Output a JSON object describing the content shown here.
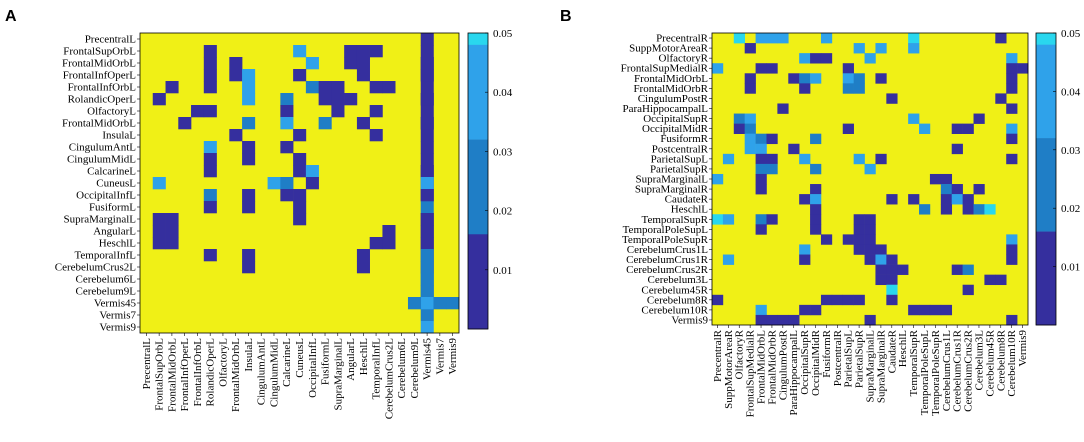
{
  "chart_data": [
    {
      "type": "heatmap",
      "panel_label": "A",
      "labels": [
        "PrecentralL",
        "FrontalSupOrbL",
        "FrontalMidOrbL",
        "FrontalInfOperL",
        "FrontalInfOrbL",
        "RolandicOperL",
        "OlfactoryL",
        "FrontalMidOrbL",
        "InsulaL",
        "CingulumAntL",
        "CingulumMidL",
        "CalcarineL",
        "CuneusL",
        "OccipitalInfL",
        "FusiformL",
        "SupraMarginalL",
        "AngularL",
        "HeschlL",
        "TemporalInfL",
        "CerebelumCrus2L",
        "Cerebelum6L",
        "Cerebelum9L",
        "Vermis45",
        "Vermis7",
        "Vermis9"
      ],
      "colorbar": {
        "ticks": [
          "0.01",
          "0.02",
          "0.03",
          "0.04",
          "0.05"
        ],
        "min": 0,
        "max": 0.05
      },
      "colors": {
        "background": "#f0f016",
        "dark": "#352f9e",
        "mid": "#1f7ec6",
        "light": "#2fa2ea",
        "cyan": "#29d7ee"
      },
      "cells": [
        [
          0,
          22,
          1
        ],
        [
          1,
          22,
          1
        ],
        [
          2,
          22,
          1
        ],
        [
          3,
          22,
          1
        ],
        [
          4,
          22,
          1
        ],
        [
          5,
          22,
          1
        ],
        [
          6,
          22,
          1
        ],
        [
          7,
          22,
          1
        ],
        [
          8,
          22,
          1
        ],
        [
          9,
          22,
          1
        ],
        [
          10,
          22,
          1
        ],
        [
          11,
          22,
          1
        ],
        [
          12,
          22,
          1
        ],
        [
          13,
          22,
          1
        ],
        [
          14,
          22,
          2
        ],
        [
          15,
          22,
          1
        ],
        [
          16,
          22,
          1
        ],
        [
          17,
          22,
          1
        ],
        [
          18,
          22,
          1
        ],
        [
          19,
          22,
          1
        ],
        [
          20,
          22,
          2
        ],
        [
          21,
          22,
          2
        ],
        [
          23,
          22,
          2
        ],
        [
          24,
          22,
          3
        ],
        [
          1,
          12,
          3
        ],
        [
          1,
          16,
          1
        ],
        [
          1,
          17,
          1
        ],
        [
          1,
          5,
          1
        ],
        [
          1,
          18,
          1
        ],
        [
          2,
          5,
          1
        ],
        [
          2,
          7,
          1
        ],
        [
          2,
          16,
          1
        ],
        [
          2,
          17,
          1
        ],
        [
          2,
          13,
          3
        ],
        [
          2,
          22,
          1
        ],
        [
          3,
          7,
          1
        ],
        [
          3,
          5,
          1
        ],
        [
          3,
          8,
          3
        ],
        [
          3,
          12,
          1
        ],
        [
          3,
          17,
          1
        ],
        [
          3,
          22,
          1
        ],
        [
          4,
          5,
          1
        ],
        [
          4,
          2,
          1
        ],
        [
          4,
          8,
          3
        ],
        [
          4,
          13,
          2
        ],
        [
          4,
          14,
          1
        ],
        [
          4,
          15,
          1
        ],
        [
          4,
          19,
          1
        ],
        [
          4,
          18,
          1
        ],
        [
          5,
          1,
          1
        ],
        [
          5,
          8,
          3
        ],
        [
          5,
          11,
          2
        ],
        [
          5,
          14,
          1
        ],
        [
          5,
          15,
          1
        ],
        [
          5,
          16,
          1
        ],
        [
          5,
          22,
          1
        ],
        [
          6,
          4,
          1
        ],
        [
          6,
          5,
          1
        ],
        [
          6,
          11,
          1
        ],
        [
          6,
          15,
          1
        ],
        [
          6,
          18,
          1
        ],
        [
          7,
          3,
          1
        ],
        [
          7,
          8,
          2
        ],
        [
          7,
          11,
          3
        ],
        [
          7,
          14,
          2
        ],
        [
          7,
          17,
          1
        ],
        [
          7,
          22,
          1
        ],
        [
          8,
          12,
          1
        ],
        [
          8,
          18,
          1
        ],
        [
          8,
          7,
          1
        ],
        [
          9,
          5,
          3
        ],
        [
          9,
          8,
          1
        ],
        [
          9,
          11,
          1
        ],
        [
          10,
          8,
          1
        ],
        [
          10,
          5,
          1
        ],
        [
          10,
          12,
          1
        ],
        [
          11,
          5,
          1
        ],
        [
          11,
          12,
          1
        ],
        [
          11,
          13,
          3
        ],
        [
          11,
          22,
          1
        ],
        [
          12,
          1,
          3
        ],
        [
          12,
          10,
          3
        ],
        [
          12,
          11,
          2
        ],
        [
          12,
          13,
          1
        ],
        [
          12,
          22,
          3
        ],
        [
          13,
          5,
          2
        ],
        [
          13,
          12,
          1
        ],
        [
          13,
          8,
          1
        ],
        [
          13,
          11,
          1
        ],
        [
          13,
          22,
          1
        ],
        [
          14,
          5,
          1
        ],
        [
          14,
          12,
          1
        ],
        [
          14,
          8,
          1
        ],
        [
          15,
          1,
          1
        ],
        [
          15,
          2,
          1
        ],
        [
          15,
          12,
          1
        ],
        [
          15,
          22,
          1
        ],
        [
          16,
          1,
          1
        ],
        [
          16,
          2,
          1
        ],
        [
          16,
          19,
          1
        ],
        [
          16,
          22,
          1
        ],
        [
          17,
          1,
          1
        ],
        [
          17,
          2,
          1
        ],
        [
          17,
          19,
          1
        ],
        [
          17,
          18,
          1
        ],
        [
          17,
          22,
          1
        ],
        [
          18,
          5,
          1
        ],
        [
          18,
          8,
          1
        ],
        [
          18,
          17,
          1
        ],
        [
          18,
          22,
          2
        ],
        [
          19,
          8,
          1
        ],
        [
          19,
          17,
          1
        ],
        [
          19,
          22,
          2
        ],
        [
          20,
          22,
          2
        ],
        [
          21,
          22,
          2
        ],
        [
          22,
          22,
          3
        ],
        [
          22,
          23,
          2
        ],
        [
          22,
          21,
          2
        ],
        [
          22,
          24,
          2
        ]
      ]
    },
    {
      "type": "heatmap",
      "panel_label": "B",
      "labels": [
        "PrecentralR",
        "SuppMotorAreaR",
        "OlfactoryR",
        "FrontalSupMedialR",
        "FrontalMidOrbL",
        "FrontalMidOrbR",
        "CingulumPostR",
        "ParaHippocampalL",
        "OccipitalSupR",
        "OccipitalMidR",
        "FusiformR",
        "PostcentralR",
        "ParietalSupL",
        "ParietalSupR",
        "SupraMarginalL",
        "SupraMarginalR",
        "CaudateR",
        "HeschlL",
        "TemporalSupR",
        "TemporalPoleSupL",
        "TemporalPoleSupR",
        "CerebelumCrus1L",
        "CerebelumCrus1R",
        "CerebelumCrus2R",
        "Cerebelum3L",
        "Cerebelum45R",
        "Cerebelum8R",
        "Cerebelum10R",
        "Vermis9"
      ],
      "colorbar": {
        "ticks": [
          "0.01",
          "0.02",
          "0.03",
          "0.04",
          "0.05"
        ],
        "min": 0,
        "max": 0.05
      },
      "colors": {
        "background": "#f0f016",
        "dark": "#352f9e",
        "mid": "#1f7ec6",
        "light": "#2fa2ea",
        "cyan": "#29d7ee"
      },
      "cells": [
        [
          0,
          2,
          4
        ],
        [
          0,
          4,
          3
        ],
        [
          0,
          5,
          3
        ],
        [
          0,
          6,
          3
        ],
        [
          0,
          10,
          3
        ],
        [
          0,
          18,
          4
        ],
        [
          0,
          26,
          1
        ],
        [
          1,
          3,
          1
        ],
        [
          1,
          13,
          3
        ],
        [
          1,
          15,
          3
        ],
        [
          1,
          18,
          3
        ],
        [
          2,
          8,
          3
        ],
        [
          2,
          9,
          1
        ],
        [
          2,
          10,
          1
        ],
        [
          2,
          14,
          3
        ],
        [
          2,
          27,
          3
        ],
        [
          3,
          0,
          3
        ],
        [
          3,
          4,
          1
        ],
        [
          3,
          5,
          1
        ],
        [
          3,
          12,
          1
        ],
        [
          3,
          27,
          1
        ],
        [
          3,
          28,
          1
        ],
        [
          4,
          3,
          1
        ],
        [
          4,
          7,
          1
        ],
        [
          4,
          8,
          2
        ],
        [
          4,
          9,
          3
        ],
        [
          4,
          12,
          3
        ],
        [
          4,
          13,
          2
        ],
        [
          4,
          15,
          1
        ],
        [
          4,
          27,
          1
        ],
        [
          5,
          3,
          1
        ],
        [
          5,
          8,
          1
        ],
        [
          5,
          12,
          2
        ],
        [
          5,
          13,
          2
        ],
        [
          5,
          27,
          1
        ],
        [
          6,
          16,
          1
        ],
        [
          6,
          26,
          1
        ],
        [
          7,
          6,
          1
        ],
        [
          7,
          27,
          1
        ],
        [
          8,
          2,
          2
        ],
        [
          8,
          3,
          3
        ],
        [
          8,
          18,
          3
        ],
        [
          8,
          24,
          1
        ],
        [
          9,
          2,
          1
        ],
        [
          9,
          3,
          2
        ],
        [
          9,
          12,
          1
        ],
        [
          9,
          19,
          3
        ],
        [
          9,
          22,
          1
        ],
        [
          9,
          23,
          1
        ],
        [
          9,
          27,
          3
        ],
        [
          10,
          3,
          3
        ],
        [
          10,
          4,
          2
        ],
        [
          10,
          5,
          1
        ],
        [
          10,
          9,
          2
        ],
        [
          10,
          27,
          1
        ],
        [
          11,
          3,
          3
        ],
        [
          11,
          4,
          3
        ],
        [
          11,
          7,
          1
        ],
        [
          11,
          22,
          1
        ],
        [
          12,
          1,
          3
        ],
        [
          12,
          4,
          1
        ],
        [
          12,
          5,
          1
        ],
        [
          12,
          8,
          3
        ],
        [
          12,
          13,
          3
        ],
        [
          12,
          15,
          1
        ],
        [
          12,
          27,
          1
        ],
        [
          13,
          4,
          2
        ],
        [
          13,
          5,
          2
        ],
        [
          13,
          9,
          2
        ],
        [
          13,
          14,
          3
        ],
        [
          14,
          0,
          3
        ],
        [
          14,
          4,
          1
        ],
        [
          14,
          20,
          1
        ],
        [
          14,
          21,
          1
        ],
        [
          15,
          4,
          1
        ],
        [
          15,
          9,
          1
        ],
        [
          15,
          21,
          2
        ],
        [
          15,
          22,
          1
        ],
        [
          15,
          24,
          1
        ],
        [
          16,
          8,
          1
        ],
        [
          16,
          9,
          3
        ],
        [
          16,
          16,
          1
        ],
        [
          16,
          18,
          1
        ],
        [
          16,
          21,
          1
        ],
        [
          16,
          22,
          3
        ],
        [
          16,
          23,
          1
        ],
        [
          17,
          9,
          1
        ],
        [
          17,
          19,
          2
        ],
        [
          17,
          21,
          1
        ],
        [
          17,
          23,
          1
        ],
        [
          17,
          24,
          2
        ],
        [
          17,
          25,
          4
        ],
        [
          18,
          0,
          4
        ],
        [
          18,
          1,
          3
        ],
        [
          18,
          4,
          2
        ],
        [
          18,
          5,
          1
        ],
        [
          18,
          9,
          1
        ],
        [
          18,
          13,
          1
        ],
        [
          18,
          14,
          1
        ],
        [
          19,
          4,
          1
        ],
        [
          19,
          9,
          1
        ],
        [
          19,
          13,
          1
        ],
        [
          19,
          14,
          1
        ],
        [
          20,
          14,
          1
        ],
        [
          20,
          10,
          1
        ],
        [
          20,
          12,
          1
        ],
        [
          20,
          13,
          1
        ],
        [
          20,
          27,
          3
        ],
        [
          21,
          8,
          3
        ],
        [
          21,
          13,
          1
        ],
        [
          21,
          14,
          1
        ],
        [
          21,
          15,
          1
        ],
        [
          21,
          27,
          1
        ],
        [
          22,
          1,
          3
        ],
        [
          22,
          8,
          1
        ],
        [
          22,
          14,
          1
        ],
        [
          22,
          15,
          3
        ],
        [
          22,
          16,
          1
        ],
        [
          22,
          27,
          1
        ],
        [
          23,
          15,
          1
        ],
        [
          23,
          16,
          1
        ],
        [
          23,
          17,
          1
        ],
        [
          23,
          22,
          1
        ],
        [
          23,
          23,
          2
        ],
        [
          24,
          15,
          1
        ],
        [
          24,
          16,
          1
        ],
        [
          24,
          25,
          1
        ],
        [
          24,
          26,
          1
        ],
        [
          25,
          16,
          4
        ],
        [
          25,
          23,
          1
        ],
        [
          26,
          0,
          1
        ],
        [
          26,
          10,
          1
        ],
        [
          26,
          11,
          1
        ],
        [
          26,
          12,
          1
        ],
        [
          26,
          13,
          1
        ],
        [
          26,
          16,
          1
        ],
        [
          27,
          4,
          3
        ],
        [
          27,
          8,
          1
        ],
        [
          27,
          9,
          1
        ],
        [
          27,
          18,
          1
        ],
        [
          27,
          19,
          1
        ],
        [
          27,
          20,
          1
        ],
        [
          27,
          21,
          1
        ],
        [
          28,
          4,
          1
        ],
        [
          28,
          5,
          1
        ],
        [
          28,
          6,
          1
        ],
        [
          28,
          7,
          1
        ],
        [
          28,
          14,
          1
        ],
        [
          28,
          27,
          1
        ]
      ]
    }
  ]
}
